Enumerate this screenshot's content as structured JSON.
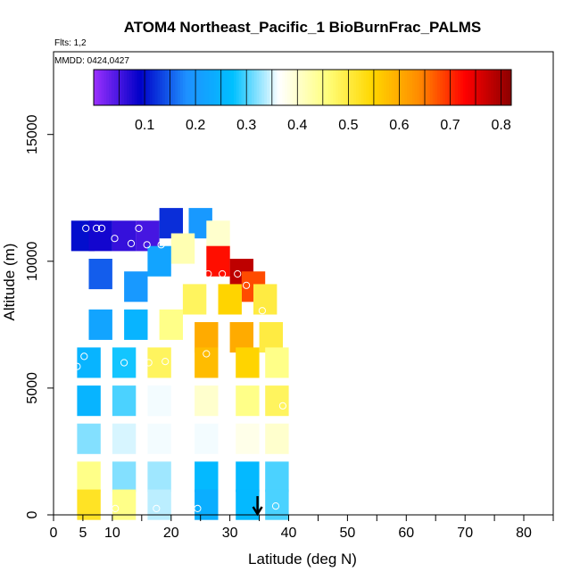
{
  "header": {
    "flights": "Flts: 1,2",
    "dates": "MMDD: 0424,0427"
  },
  "chart_data": {
    "type": "heatmap",
    "title": "ATOM4 Northeast_Pacific_1 BioBurnFrac_PALMS",
    "xlabel": "Latitude (deg N)",
    "ylabel": "Altitude (m)",
    "xlim": [
      0,
      85
    ],
    "ylim": [
      0,
      18000
    ],
    "xticks": [
      0,
      5,
      10,
      20,
      30,
      40,
      50,
      60,
      70,
      80
    ],
    "yticks": [
      0,
      5000,
      10000,
      15000
    ],
    "grid": false,
    "colorbar": {
      "range": [
        0.0,
        0.82
      ],
      "ticks": [
        0.1,
        0.2,
        0.3,
        0.4,
        0.5,
        0.6,
        0.7,
        0.8
      ],
      "position": "top",
      "colors": [
        "#9b30ff",
        "#0000c8",
        "#1e90ff",
        "#00c0ff",
        "#ffffff",
        "#ffff80",
        "#ffd700",
        "#ff8c00",
        "#ff0000",
        "#8b0000"
      ]
    },
    "heatmap_cells": [
      {
        "lat": 5,
        "alt": 11000,
        "value": 0.1
      },
      {
        "lat": 8,
        "alt": 11000,
        "value": 0.08
      },
      {
        "lat": 12,
        "alt": 11000,
        "value": 0.06
      },
      {
        "lat": 16,
        "alt": 11000,
        "value": 0.05
      },
      {
        "lat": 20,
        "alt": 11500,
        "value": 0.12
      },
      {
        "lat": 25,
        "alt": 11500,
        "value": 0.2
      },
      {
        "lat": 28,
        "alt": 11000,
        "value": 0.4
      },
      {
        "lat": 28,
        "alt": 10000,
        "value": 0.72
      },
      {
        "lat": 32,
        "alt": 9500,
        "value": 0.78
      },
      {
        "lat": 34,
        "alt": 9000,
        "value": 0.68
      },
      {
        "lat": 22,
        "alt": 10500,
        "value": 0.42
      },
      {
        "lat": 18,
        "alt": 10000,
        "value": 0.22
      },
      {
        "lat": 8,
        "alt": 9500,
        "value": 0.15
      },
      {
        "lat": 14,
        "alt": 9000,
        "value": 0.2
      },
      {
        "lat": 24,
        "alt": 8500,
        "value": 0.48
      },
      {
        "lat": 30,
        "alt": 8500,
        "value": 0.55
      },
      {
        "lat": 36,
        "alt": 8500,
        "value": 0.5
      },
      {
        "lat": 8,
        "alt": 7500,
        "value": 0.22
      },
      {
        "lat": 14,
        "alt": 7500,
        "value": 0.25
      },
      {
        "lat": 20,
        "alt": 7500,
        "value": 0.45
      },
      {
        "lat": 26,
        "alt": 7000,
        "value": 0.6
      },
      {
        "lat": 32,
        "alt": 7000,
        "value": 0.6
      },
      {
        "lat": 37,
        "alt": 7000,
        "value": 0.5
      },
      {
        "lat": 6,
        "alt": 6000,
        "value": 0.25
      },
      {
        "lat": 12,
        "alt": 6000,
        "value": 0.28
      },
      {
        "lat": 18,
        "alt": 6000,
        "value": 0.48
      },
      {
        "lat": 26,
        "alt": 6000,
        "value": 0.58
      },
      {
        "lat": 33,
        "alt": 6000,
        "value": 0.55
      },
      {
        "lat": 38,
        "alt": 6000,
        "value": 0.45
      },
      {
        "lat": 6,
        "alt": 4500,
        "value": 0.25
      },
      {
        "lat": 12,
        "alt": 4500,
        "value": 0.3
      },
      {
        "lat": 18,
        "alt": 4500,
        "value": 0.36
      },
      {
        "lat": 26,
        "alt": 4500,
        "value": 0.4
      },
      {
        "lat": 33,
        "alt": 4500,
        "value": 0.45
      },
      {
        "lat": 38,
        "alt": 4500,
        "value": 0.48
      },
      {
        "lat": 6,
        "alt": 3000,
        "value": 0.32
      },
      {
        "lat": 12,
        "alt": 3000,
        "value": 0.35
      },
      {
        "lat": 18,
        "alt": 3000,
        "value": 0.36
      },
      {
        "lat": 26,
        "alt": 3000,
        "value": 0.36
      },
      {
        "lat": 33,
        "alt": 3000,
        "value": 0.38
      },
      {
        "lat": 38,
        "alt": 3000,
        "value": 0.4
      },
      {
        "lat": 6,
        "alt": 1500,
        "value": 0.45
      },
      {
        "lat": 12,
        "alt": 1500,
        "value": 0.32
      },
      {
        "lat": 18,
        "alt": 1500,
        "value": 0.33
      },
      {
        "lat": 26,
        "alt": 1500,
        "value": 0.26
      },
      {
        "lat": 33,
        "alt": 1500,
        "value": 0.26
      },
      {
        "lat": 38,
        "alt": 1500,
        "value": 0.3
      },
      {
        "lat": 6,
        "alt": 400,
        "value": 0.52
      },
      {
        "lat": 12,
        "alt": 400,
        "value": 0.45
      },
      {
        "lat": 18,
        "alt": 400,
        "value": 0.34
      },
      {
        "lat": 26,
        "alt": 400,
        "value": 0.24
      },
      {
        "lat": 33,
        "alt": 400,
        "value": 0.26
      },
      {
        "lat": 38,
        "alt": 400,
        "value": 0.3
      }
    ],
    "sample_points": [
      {
        "lat": 5.5,
        "alt": 11300
      },
      {
        "lat": 7.3,
        "alt": 11300
      },
      {
        "lat": 8.2,
        "alt": 11300
      },
      {
        "lat": 14.5,
        "alt": 11300
      },
      {
        "lat": 10.4,
        "alt": 10900
      },
      {
        "lat": 13.2,
        "alt": 10700
      },
      {
        "lat": 15.9,
        "alt": 10650
      },
      {
        "lat": 18.3,
        "alt": 10650
      },
      {
        "lat": 28.5,
        "alt": 12300
      },
      {
        "lat": 31.3,
        "alt": 12300
      },
      {
        "lat": 26.3,
        "alt": 9500
      },
      {
        "lat": 28.7,
        "alt": 9500
      },
      {
        "lat": 31.3,
        "alt": 9500
      },
      {
        "lat": 32.8,
        "alt": 9050
      },
      {
        "lat": 35.5,
        "alt": 8050
      },
      {
        "lat": 26.0,
        "alt": 6350
      },
      {
        "lat": 5.2,
        "alt": 6250
      },
      {
        "lat": 4.0,
        "alt": 5850
      },
      {
        "lat": 9.2,
        "alt": 5900
      },
      {
        "lat": 12.0,
        "alt": 6000
      },
      {
        "lat": 16.2,
        "alt": 6000
      },
      {
        "lat": 19.0,
        "alt": 6050
      },
      {
        "lat": 23.0,
        "alt": 5650
      },
      {
        "lat": 39.0,
        "alt": 4300
      },
      {
        "lat": 10.5,
        "alt": 250
      },
      {
        "lat": 17.5,
        "alt": 250
      },
      {
        "lat": 24.5,
        "alt": 250
      },
      {
        "lat": 37.8,
        "alt": 350
      }
    ],
    "marker": {
      "lat": 34.7,
      "alt": 0,
      "type": "arrow-down"
    }
  }
}
